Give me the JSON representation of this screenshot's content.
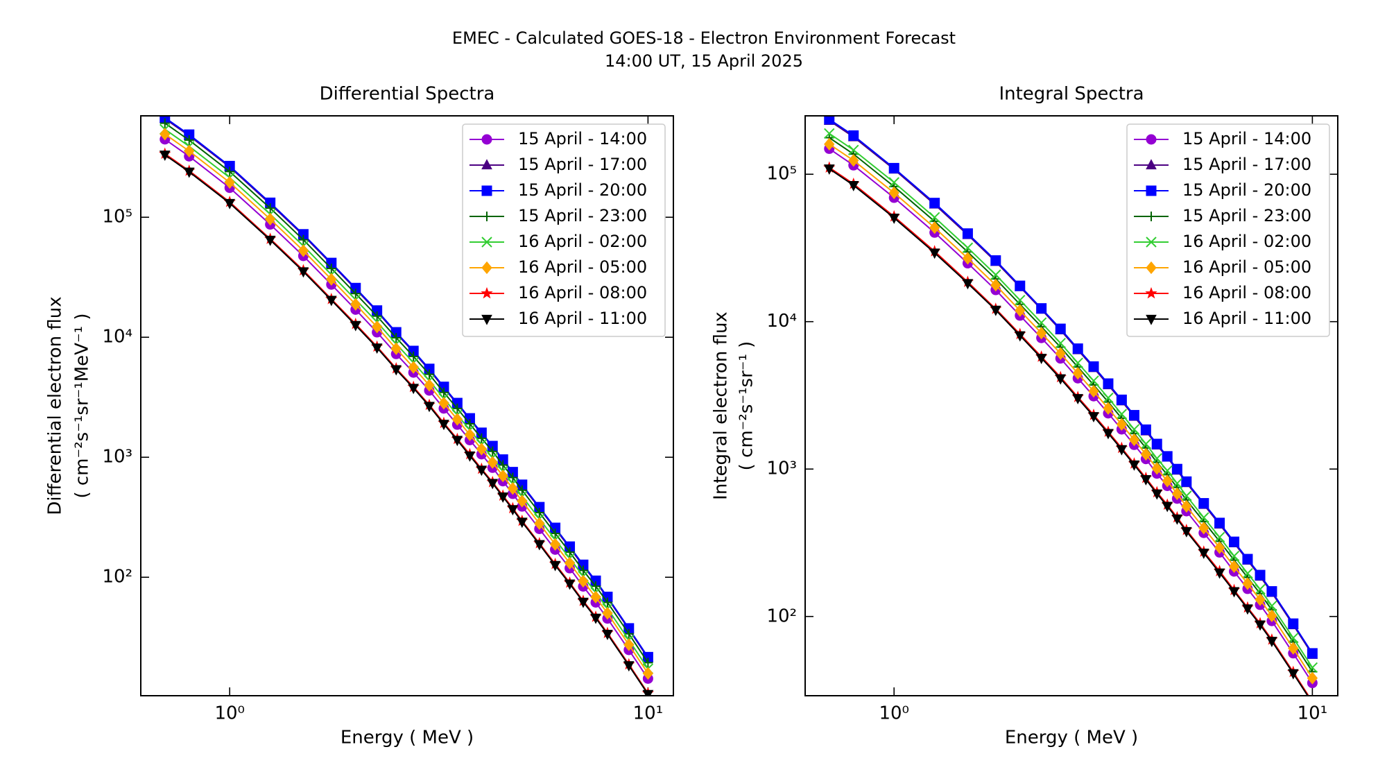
{
  "figure": {
    "title": "EMEC - Calculated GOES-18 - Electron Environment Forecast",
    "subtitle": "14:00 UT, 15 April 2025"
  },
  "chart_data": [
    {
      "type": "line",
      "title": "Differential Spectra",
      "xlabel": "Energy ( MeV )",
      "ylabel": [
        "Differential electron flux",
        "( cm⁻²s⁻¹sr⁻¹MeV⁻¹ )"
      ],
      "xscale": "log",
      "yscale": "log",
      "legend": "upper right",
      "xlim": [
        0.613,
        11.5
      ],
      "ylim": [
        10.3,
        700000
      ],
      "xticks": [
        {
          "value": 1,
          "label": "10⁰"
        },
        {
          "value": 10,
          "label": "10¹"
        }
      ],
      "yticks": [
        {
          "value": 100,
          "label": "10²"
        },
        {
          "value": 1000,
          "label": "10³"
        },
        {
          "value": 10000,
          "label": "10⁴"
        },
        {
          "value": 100000,
          "label": "10⁵"
        }
      ],
      "x": [
        0.7,
        0.8,
        1.0,
        1.25,
        1.5,
        1.75,
        2.0,
        2.25,
        2.5,
        2.75,
        3.0,
        3.25,
        3.5,
        3.75,
        4.0,
        4.25,
        4.5,
        4.75,
        5.0,
        5.5,
        6.0,
        6.5,
        7.0,
        7.5,
        8.0,
        9.0,
        10.0
      ],
      "series": [
        {
          "name": "15 April - 14:00",
          "color": "#9400d3",
          "marker": "o",
          "values": [
            446000,
            322000,
            176000,
            87100,
            47600,
            27500,
            17000,
            11000,
            7260,
            5080,
            3600,
            2550,
            1870,
            1390,
            1060,
            818,
            632,
            496,
            389,
            253,
            170,
            119,
            83.8,
            61.7,
            45.3,
            24.8,
            14.3
          ]
        },
        {
          "name": "15 April - 17:00",
          "color": "#4b0082",
          "marker": "^",
          "values": [
            662000,
            478000,
            262000,
            129000,
            70700,
            40800,
            25200,
            16400,
            10800,
            7540,
            5340,
            3780,
            2770,
            2070,
            1570,
            1220,
            938,
            737,
            578,
            376,
            253,
            176,
            124,
            91.6,
            67.2,
            36.8,
            21.2
          ]
        },
        {
          "name": "15 April - 20:00",
          "color": "#0000ff",
          "marker": "s",
          "values": [
            676000,
            488000,
            267000,
            132000,
            72100,
            41600,
            25700,
            16700,
            11000,
            7690,
            5450,
            3860,
            2830,
            2110,
            1600,
            1240,
            957,
            752,
            590,
            384,
            258,
            180,
            127,
            93.5,
            68.6,
            37.5,
            21.6
          ]
        },
        {
          "name": "15 April - 23:00",
          "color": "#006400",
          "marker": "+",
          "values": [
            608000,
            439000,
            240000,
            119000,
            64900,
            37400,
            23100,
            15000,
            9900,
            6920,
            4910,
            3470,
            2550,
            1900,
            1440,
            1120,
            861,
            677,
            531,
            346,
            232,
            162,
            114,
            84.2,
            61.7,
            33.8,
            19.4
          ]
        },
        {
          "name": "16 April - 02:00",
          "color": "#32cd32",
          "marker": "x",
          "values": [
            541000,
            390000,
            214000,
            106000,
            57700,
            33300,
            20600,
            13400,
            8800,
            6150,
            4360,
            3090,
            2260,
            1690,
            1280,
            992,
            766,
            602,
            472,
            307,
            206,
            144,
            102,
            74.8,
            54.9,
            30.0,
            17.3
          ]
        },
        {
          "name": "16 April - 05:00",
          "color": "#ffa500",
          "marker": "D",
          "values": [
            493000,
            356000,
            195000,
            96400,
            52600,
            30400,
            18800,
            12200,
            8030,
            5610,
            3980,
            2820,
            2070,
            1540,
            1170,
            905,
            699,
            549,
            431,
            280,
            188,
            131,
            92.7,
            68.3,
            50.1,
            27.4,
            15.8
          ]
        },
        {
          "name": "16 April - 08:00",
          "color": "#ff0000",
          "marker": "*",
          "values": [
            338000,
            244000,
            134000,
            66000,
            36100,
            20800,
            12900,
            8350,
            5500,
            3850,
            2730,
            1930,
            1420,
            1060,
            800,
            620,
            479,
            376,
            295,
            192,
            129,
            90,
            63.5,
            46.8,
            34.3,
            18.8,
            10.8
          ]
        },
        {
          "name": "16 April - 11:00",
          "color": "#000000",
          "marker": "v",
          "values": [
            331000,
            239000,
            131000,
            64700,
            35300,
            20400,
            12600,
            8180,
            5390,
            3770,
            2670,
            1890,
            1390,
            1030,
            784,
            608,
            469,
            368,
            289,
            188,
            126,
            88.2,
            62.2,
            45.8,
            33.6,
            18.4,
            10.6
          ]
        }
      ]
    },
    {
      "type": "line",
      "title": "Integral Spectra",
      "xlabel": "Energy ( MeV )",
      "ylabel": [
        "Integral electron flux",
        "( cm⁻²s⁻¹sr⁻¹ )"
      ],
      "xscale": "log",
      "yscale": "log",
      "legend": "upper right",
      "xlim": [
        0.613,
        11.5
      ],
      "ylim": [
        29,
        249000
      ],
      "xticks": [
        {
          "value": 1,
          "label": "10⁰"
        },
        {
          "value": 10,
          "label": "10¹"
        }
      ],
      "yticks": [
        {
          "value": 100,
          "label": "10²"
        },
        {
          "value": 1000,
          "label": "10³"
        },
        {
          "value": 10000,
          "label": "10⁴"
        },
        {
          "value": 100000,
          "label": "10⁵"
        }
      ],
      "x": [
        0.7,
        0.8,
        1.0,
        1.25,
        1.5,
        1.75,
        2.0,
        2.25,
        2.5,
        2.75,
        3.0,
        3.25,
        3.5,
        3.75,
        4.0,
        4.25,
        4.5,
        4.75,
        5.0,
        5.5,
        6.0,
        6.5,
        7.0,
        7.5,
        8.0,
        9.0,
        10.0
      ],
      "series": [
        {
          "name": "15 April - 14:00",
          "color": "#9400d3",
          "marker": "o",
          "values": [
            149000,
            115000,
            69300,
            40200,
            24900,
            16400,
            11000,
            7750,
            5630,
            4130,
            3120,
            2390,
            1860,
            1460,
            1170,
            932,
            769,
            630,
            518,
            369,
            272,
            202,
            154,
            120,
            93.2,
            56.3,
            35.4
          ]
        },
        {
          "name": "15 April - 17:00",
          "color": "#4b0082",
          "marker": "^",
          "values": [
            231000,
            179000,
            108000,
            62500,
            38800,
            25500,
            17200,
            12100,
            8760,
            6430,
            4860,
            3720,
            2890,
            2270,
            1810,
            1450,
            1200,
            980,
            806,
            574,
            422,
            315,
            240,
            187,
            145,
            87.6,
            55.1
          ]
        },
        {
          "name": "15 April - 20:00",
          "color": "#0000ff",
          "marker": "s",
          "values": [
            236000,
            183000,
            110000,
            63800,
            39600,
            26000,
            17500,
            12300,
            8940,
            6560,
            4960,
            3800,
            2950,
            2320,
            1850,
            1480,
            1220,
            1000,
            822,
            586,
            431,
            321,
            245,
            191,
            148,
            89.4,
            56.2
          ]
        },
        {
          "name": "15 April - 23:00",
          "color": "#006400",
          "marker": "+",
          "values": [
            177000,
            137000,
            82500,
            47900,
            29700,
            19500,
            13100,
            9230,
            6710,
            4920,
            3720,
            2850,
            2210,
            1740,
            1390,
            1110,
            915,
            750,
            617,
            440,
            323,
            241,
            184,
            143,
            111,
            67.1,
            42.2
          ]
        },
        {
          "name": "16 April - 02:00",
          "color": "#32cd32",
          "marker": "x",
          "values": [
            189000,
            146000,
            88000,
            51000,
            31700,
            20800,
            14000,
            9840,
            7150,
            5250,
            3970,
            3040,
            2360,
            1860,
            1480,
            1180,
            976,
            800,
            658,
            469,
            345,
            257,
            196,
            153,
            118,
            71.5,
            45.0
          ]
        },
        {
          "name": "16 April - 05:00",
          "color": "#ffa500",
          "marker": "D",
          "values": [
            160000,
            124000,
            74800,
            43400,
            26900,
            17700,
            11900,
            8360,
            6080,
            4460,
            3370,
            2580,
            2010,
            1580,
            1260,
            1010,
            830,
            680,
            559,
            398,
            293,
            218,
            167,
            130,
            101,
            60.8,
            38.2
          ]
        },
        {
          "name": "16 April - 08:00",
          "color": "#ff0000",
          "marker": "*",
          "values": [
            111000,
            86000,
            51700,
            30000,
            18600,
            12200,
            8230,
            5780,
            4200,
            3080,
            2330,
            1790,
            1390,
            1090,
            870,
            696,
            573,
            470,
            386,
            275,
            203,
            151,
            115,
            89.8,
            69.6,
            42.0,
            26.4
          ]
        },
        {
          "name": "16 April - 11:00",
          "color": "#000000",
          "marker": "v",
          "values": [
            109000,
            84200,
            50600,
            29300,
            18200,
            12000,
            8050,
            5660,
            4110,
            3020,
            2280,
            1750,
            1360,
            1070,
            851,
            681,
            561,
            460,
            378,
            270,
            198,
            148,
            113,
            87.9,
            68.1,
            41.1,
            25.9
          ]
        }
      ]
    }
  ]
}
